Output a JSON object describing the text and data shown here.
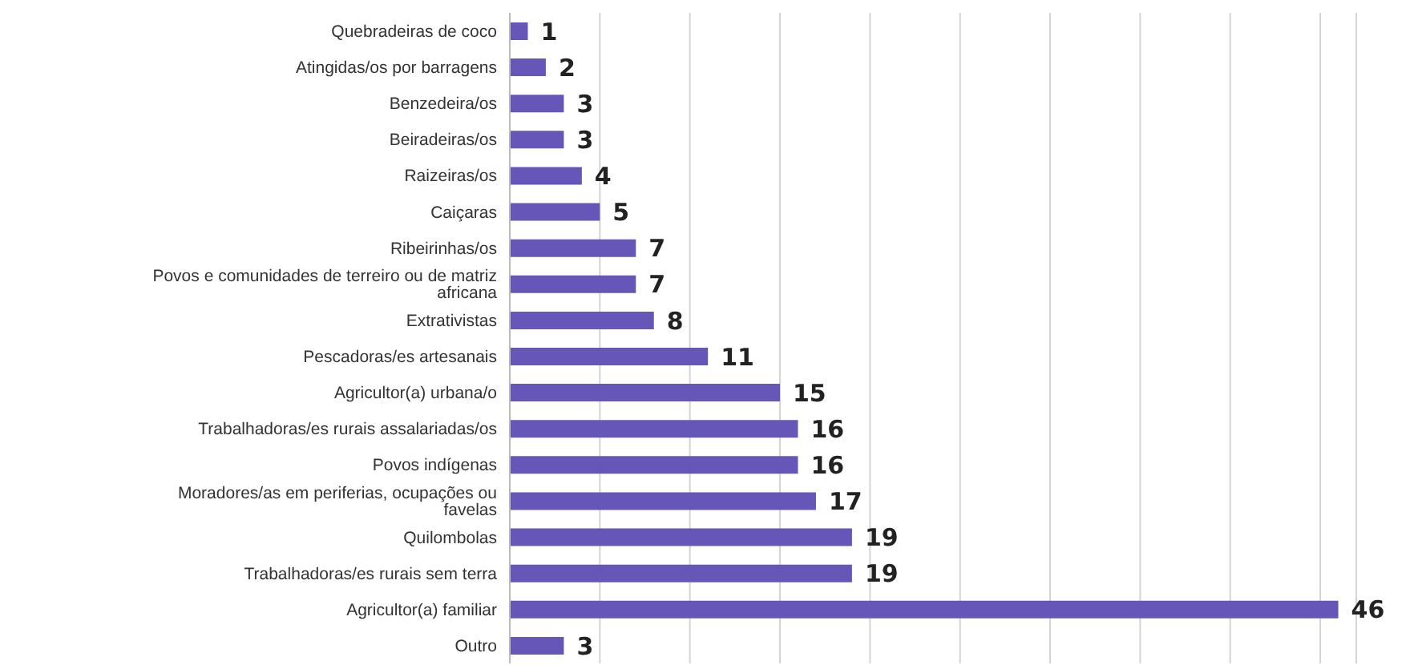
{
  "chart_data": {
    "type": "bar",
    "orientation": "horizontal",
    "categories": [
      "Quebradeiras de coco",
      "Atingidas/os por barragens",
      "Benzedeira/os",
      "Beiradeiras/os",
      "Raizeiras/os",
      "Caiçaras",
      "Ribeirinhas/os",
      "Povos e comunidades de terreiro ou de matriz africana",
      "Extrativistas",
      "Pescadoras/es artesanais",
      "Agricultor(a) urbana/o",
      "Trabalhadoras/es rurais assalariadas/os",
      "Povos indígenas",
      "Moradores/as em periferias, ocupações ou favelas",
      "Quilombolas",
      "Trabalhadoras/es rurais sem terra",
      "Agricultor(a) familiar",
      "Outro"
    ],
    "values": [
      1,
      2,
      3,
      3,
      4,
      5,
      7,
      7,
      8,
      11,
      15,
      16,
      16,
      17,
      19,
      19,
      46,
      3
    ],
    "color": "#6556b8",
    "data_labels": true,
    "xlim": [
      0,
      47
    ],
    "xticks": [
      {
        "value": 0,
        "label": null
      },
      {
        "value": 5,
        "label": null
      },
      {
        "value": 10,
        "label": null
      },
      {
        "value": 15,
        "label": null
      },
      {
        "value": 20,
        "label": null
      },
      {
        "value": 25,
        "label": null
      },
      {
        "value": 30,
        "label": null
      },
      {
        "value": 35,
        "label": null
      },
      {
        "value": 40,
        "label": null
      },
      {
        "value": 45,
        "label": null
      }
    ],
    "grid": "x",
    "tick_labels": "y"
  }
}
